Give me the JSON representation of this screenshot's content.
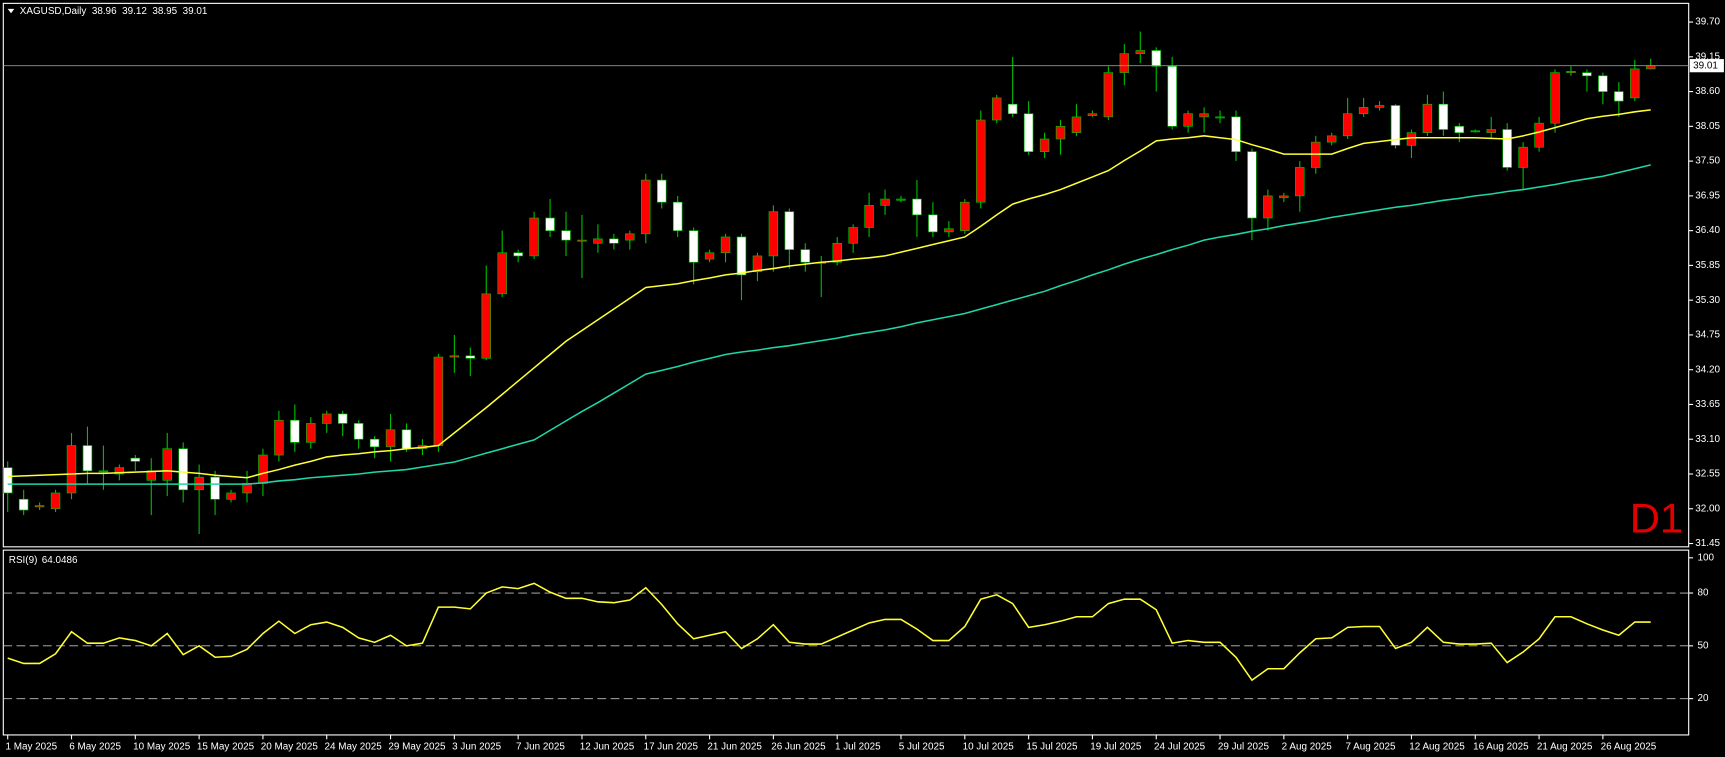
{
  "chart_data": {
    "type": "candlestick",
    "symbol": "XAGUSD,Daily",
    "watermark": "D1",
    "up_color": "#ff0000",
    "down_color": "#ffffff",
    "wick_color": "#00c000",
    "categories": [
      "1 May 2025",
      null,
      null,
      null,
      "6 May 2025",
      null,
      null,
      null,
      "10 May 2025",
      null,
      null,
      null,
      "15 May 2025",
      null,
      null,
      null,
      "20 May 2025",
      null,
      null,
      null,
      "24 May 2025",
      null,
      null,
      null,
      "29 May 2025",
      null,
      null,
      null,
      "3 Jun 2025",
      null,
      null,
      null,
      "7 Jun 2025",
      null,
      null,
      null,
      "12 Jun 2025",
      null,
      null,
      null,
      "17 Jun 2025",
      null,
      null,
      null,
      "21 Jun 2025",
      null,
      null,
      null,
      "26 Jun 2025",
      null,
      null,
      null,
      "1 Jul 2025",
      null,
      null,
      null,
      "5 Jul 2025",
      null,
      null,
      null,
      "10 Jul 2025",
      null,
      null,
      null,
      "15 Jul 2025",
      null,
      null,
      null,
      "19 Jul 2025",
      null,
      null,
      null,
      "24 Jul 2025",
      null,
      null,
      null,
      "29 Jul 2025",
      null,
      null,
      null,
      "2 Aug 2025",
      null,
      null,
      null,
      "7 Aug 2025",
      null,
      null,
      null,
      "12 Aug 2025",
      null,
      null,
      null,
      "16 Aug 2025",
      null,
      null,
      null,
      "21 Aug 2025",
      null,
      null,
      null,
      "26 Aug 2025",
      null,
      null,
      null
    ],
    "open": [
      32.65,
      32.15,
      32.03,
      32.0,
      32.25,
      33.0,
      32.6,
      32.55,
      32.8,
      32.45,
      32.45,
      32.95,
      32.3,
      32.5,
      32.15,
      32.25,
      32.4,
      32.85,
      33.4,
      33.05,
      33.35,
      33.5,
      33.35,
      33.1,
      32.98,
      33.25,
      32.95,
      33.0,
      34.4,
      34.42,
      34.38,
      35.4,
      36.05,
      36.0,
      36.6,
      36.4,
      36.25,
      36.2,
      36.27,
      36.25,
      36.35,
      37.2,
      36.85,
      36.4,
      35.95,
      36.05,
      36.3,
      35.75,
      36.0,
      36.7,
      36.1,
      35.9,
      35.9,
      36.2,
      36.45,
      36.8,
      36.88,
      36.9,
      36.65,
      36.38,
      36.4,
      36.85,
      38.15,
      38.4,
      38.25,
      37.65,
      37.85,
      37.95,
      38.22,
      38.2,
      38.9,
      39.2,
      39.25,
      39.0,
      38.05,
      38.2,
      38.2,
      38.2,
      37.65,
      36.6,
      36.92,
      36.95,
      37.4,
      37.8,
      37.9,
      38.25,
      38.35,
      38.38,
      37.75,
      37.95,
      38.4,
      38.05,
      37.97,
      37.95,
      38.0,
      37.4,
      37.72,
      38.1,
      38.9,
      38.9,
      38.85,
      38.6,
      38.5,
      38.96
    ],
    "high": [
      32.75,
      32.3,
      32.1,
      32.3,
      33.2,
      33.3,
      33.0,
      32.7,
      32.85,
      32.8,
      33.2,
      33.05,
      32.7,
      32.6,
      32.3,
      32.6,
      32.95,
      33.55,
      33.65,
      33.45,
      33.55,
      33.55,
      33.4,
      33.15,
      33.5,
      33.35,
      33.1,
      34.45,
      34.75,
      34.55,
      35.85,
      36.4,
      36.1,
      36.7,
      36.9,
      36.7,
      36.65,
      36.5,
      36.35,
      36.4,
      37.3,
      37.3,
      36.95,
      36.45,
      36.1,
      36.35,
      36.35,
      36.05,
      36.8,
      36.75,
      36.2,
      36.0,
      36.3,
      36.5,
      37.0,
      37.05,
      36.95,
      37.2,
      36.85,
      36.55,
      36.9,
      38.3,
      38.55,
      39.15,
      38.45,
      37.95,
      38.15,
      38.4,
      38.3,
      39.0,
      39.35,
      39.55,
      39.3,
      39.15,
      38.3,
      38.35,
      38.3,
      38.3,
      37.7,
      37.05,
      37.0,
      37.5,
      37.9,
      37.95,
      38.5,
      38.5,
      38.45,
      38.4,
      38.0,
      38.55,
      38.6,
      38.1,
      38.0,
      38.2,
      38.1,
      37.8,
      38.2,
      38.95,
      39.0,
      38.95,
      38.9,
      38.75,
      39.1,
      39.12
    ],
    "low": [
      31.95,
      31.9,
      31.98,
      31.95,
      32.15,
      32.4,
      32.3,
      32.45,
      32.6,
      31.9,
      32.2,
      32.1,
      31.6,
      31.9,
      32.1,
      32.1,
      32.2,
      32.75,
      32.9,
      32.95,
      33.2,
      33.15,
      32.95,
      32.8,
      32.75,
      32.9,
      32.85,
      32.9,
      34.15,
      34.1,
      34.35,
      35.35,
      35.9,
      35.95,
      36.3,
      36.0,
      35.65,
      36.05,
      36.1,
      36.1,
      36.2,
      36.75,
      36.3,
      35.55,
      35.9,
      35.9,
      35.3,
      35.6,
      35.75,
      35.8,
      35.75,
      35.35,
      35.85,
      36.05,
      36.3,
      36.65,
      36.85,
      36.3,
      36.3,
      36.3,
      36.35,
      36.75,
      38.1,
      38.2,
      37.6,
      37.55,
      37.6,
      37.9,
      38.2,
      38.15,
      38.7,
      39.05,
      38.6,
      38.0,
      37.95,
      37.95,
      38.1,
      37.5,
      36.25,
      36.4,
      36.85,
      36.7,
      37.3,
      37.75,
      37.85,
      38.2,
      38.3,
      37.7,
      37.55,
      37.9,
      37.9,
      37.8,
      37.95,
      37.85,
      37.35,
      37.05,
      37.65,
      37.95,
      38.85,
      38.6,
      38.4,
      38.2,
      38.45,
      38.95
    ],
    "close": [
      32.25,
      31.98,
      32.05,
      32.25,
      33.0,
      32.6,
      32.6,
      32.65,
      32.75,
      32.6,
      32.95,
      32.3,
      32.5,
      32.15,
      32.25,
      32.4,
      32.85,
      33.4,
      33.05,
      33.35,
      33.5,
      33.35,
      33.1,
      32.98,
      33.25,
      32.95,
      33.0,
      34.4,
      34.42,
      34.38,
      35.4,
      36.05,
      36.0,
      36.6,
      36.4,
      36.25,
      36.25,
      36.27,
      36.2,
      36.35,
      37.2,
      36.85,
      36.4,
      35.9,
      36.05,
      36.3,
      35.7,
      36.0,
      36.7,
      36.1,
      35.9,
      35.9,
      36.2,
      36.45,
      36.8,
      36.9,
      36.9,
      36.65,
      36.38,
      36.43,
      36.85,
      38.15,
      38.5,
      38.25,
      37.65,
      37.85,
      38.05,
      38.2,
      38.25,
      38.9,
      39.2,
      39.25,
      39.0,
      38.05,
      38.25,
      38.25,
      38.2,
      37.65,
      36.6,
      36.95,
      36.95,
      37.4,
      37.8,
      37.9,
      38.25,
      38.35,
      38.38,
      37.75,
      37.95,
      38.4,
      38.0,
      37.95,
      37.98,
      38.0,
      37.4,
      37.72,
      38.1,
      38.9,
      38.92,
      38.85,
      38.6,
      38.45,
      38.96,
      39.01
    ],
    "overlays": [
      {
        "color": "#ffff33",
        "values": [
          32.51,
          32.52,
          32.53,
          32.54,
          32.55,
          32.56,
          32.56,
          32.57,
          32.58,
          32.59,
          32.6,
          32.58,
          32.56,
          32.53,
          32.51,
          32.49,
          32.56,
          32.62,
          32.69,
          32.75,
          32.82,
          32.85,
          32.87,
          32.9,
          32.92,
          32.95,
          32.97,
          33.0,
          33.2,
          33.4,
          33.6,
          33.81,
          34.02,
          34.23,
          34.44,
          34.65,
          34.82,
          34.99,
          35.16,
          35.33,
          35.5,
          35.53,
          35.56,
          35.61,
          35.65,
          35.7,
          35.73,
          35.77,
          35.8,
          35.84,
          35.87,
          35.9,
          35.92,
          35.95,
          35.97,
          36.0,
          36.06,
          36.12,
          36.18,
          36.24,
          36.3,
          36.47,
          36.65,
          36.82,
          36.9,
          36.97,
          37.05,
          37.15,
          37.25,
          37.35,
          37.51,
          37.66,
          37.82,
          37.85,
          37.87,
          37.9,
          37.87,
          37.84,
          37.76,
          37.69,
          37.61,
          37.61,
          37.61,
          37.61,
          37.7,
          37.78,
          37.81,
          37.84,
          37.87,
          37.87,
          37.87,
          37.87,
          37.87,
          37.86,
          37.85,
          37.9,
          37.96,
          38.03,
          38.1,
          38.17,
          38.21,
          38.24,
          38.28,
          38.31
        ]
      },
      {
        "color": "#1fd6a8",
        "values": [
          32.39,
          32.39,
          32.39,
          32.39,
          32.39,
          32.39,
          32.39,
          32.39,
          32.39,
          32.39,
          32.39,
          32.39,
          32.39,
          32.39,
          32.39,
          32.39,
          32.41,
          32.44,
          32.46,
          32.49,
          32.51,
          32.53,
          32.55,
          32.58,
          32.6,
          32.62,
          32.66,
          32.7,
          32.74,
          32.81,
          32.88,
          32.95,
          33.02,
          33.09,
          33.24,
          33.39,
          33.54,
          33.68,
          33.83,
          33.98,
          34.13,
          34.19,
          34.25,
          34.32,
          34.38,
          34.44,
          34.48,
          34.51,
          34.55,
          34.58,
          34.62,
          34.66,
          34.7,
          34.75,
          34.79,
          34.83,
          34.88,
          34.94,
          34.99,
          35.04,
          35.09,
          35.16,
          35.23,
          35.3,
          35.37,
          35.44,
          35.53,
          35.61,
          35.7,
          35.78,
          35.87,
          35.95,
          36.02,
          36.1,
          36.17,
          36.25,
          36.3,
          36.34,
          36.39,
          36.43,
          36.48,
          36.52,
          36.56,
          36.61,
          36.65,
          36.69,
          36.73,
          36.77,
          36.8,
          36.84,
          36.88,
          36.91,
          36.95,
          36.98,
          37.02,
          37.05,
          37.09,
          37.13,
          37.18,
          37.22,
          37.26,
          37.32,
          37.38,
          37.44
        ]
      }
    ],
    "ylim": [
      31.45,
      39.7
    ],
    "yticks": [
      {
        "value": 39.7,
        "label": "39.70"
      },
      39.15,
      {
        "value": 38.6,
        "label": "38.60"
      },
      38.05,
      {
        "value": 37.5,
        "label": "37.50"
      },
      36.95,
      {
        "value": 36.4,
        "label": "36.40"
      },
      35.85,
      {
        "value": 35.3,
        "label": "35.30"
      },
      34.75,
      {
        "value": 34.2,
        "label": "34.20"
      },
      33.65,
      {
        "value": 33.1,
        "label": "33.10"
      },
      32.55,
      {
        "value": 32.0,
        "label": "32.00"
      },
      31.45
    ],
    "rsi": {
      "label": "RSI(9)",
      "value": 64.0486,
      "color": "#ffff33",
      "values": [
        43,
        40,
        40,
        45.5,
        58,
        51.5,
        51.5,
        54.5,
        53,
        50,
        57,
        45,
        50,
        43.5,
        44,
        48,
        57,
        64,
        57,
        62,
        63.5,
        60.5,
        54.5,
        52,
        56,
        50,
        51.5,
        72,
        72,
        71,
        80,
        83.5,
        82.5,
        85.5,
        80.5,
        77,
        77,
        75,
        74.5,
        76,
        83,
        73.5,
        62.5,
        54,
        56,
        58,
        48.5,
        54,
        62,
        52,
        51,
        51,
        55,
        59,
        63,
        65,
        65,
        59.5,
        53,
        53,
        61,
        76.5,
        79,
        74,
        60.5,
        62,
        64,
        66.5,
        66.5,
        74,
        76.5,
        76.5,
        70.5,
        51.5,
        53,
        52,
        52,
        43.5,
        30.5,
        37,
        37,
        46,
        54,
        54.5,
        60.5,
        61,
        61,
        48.5,
        52,
        60.5,
        52,
        51,
        51,
        51.5,
        40.5,
        46.5,
        54,
        66.5,
        66.5,
        62.5,
        59,
        56,
        63.5,
        63.5
      ],
      "ylim": [
        0,
        100
      ],
      "yticks": [
        100,
        80,
        50,
        20
      ]
    }
  }
}
